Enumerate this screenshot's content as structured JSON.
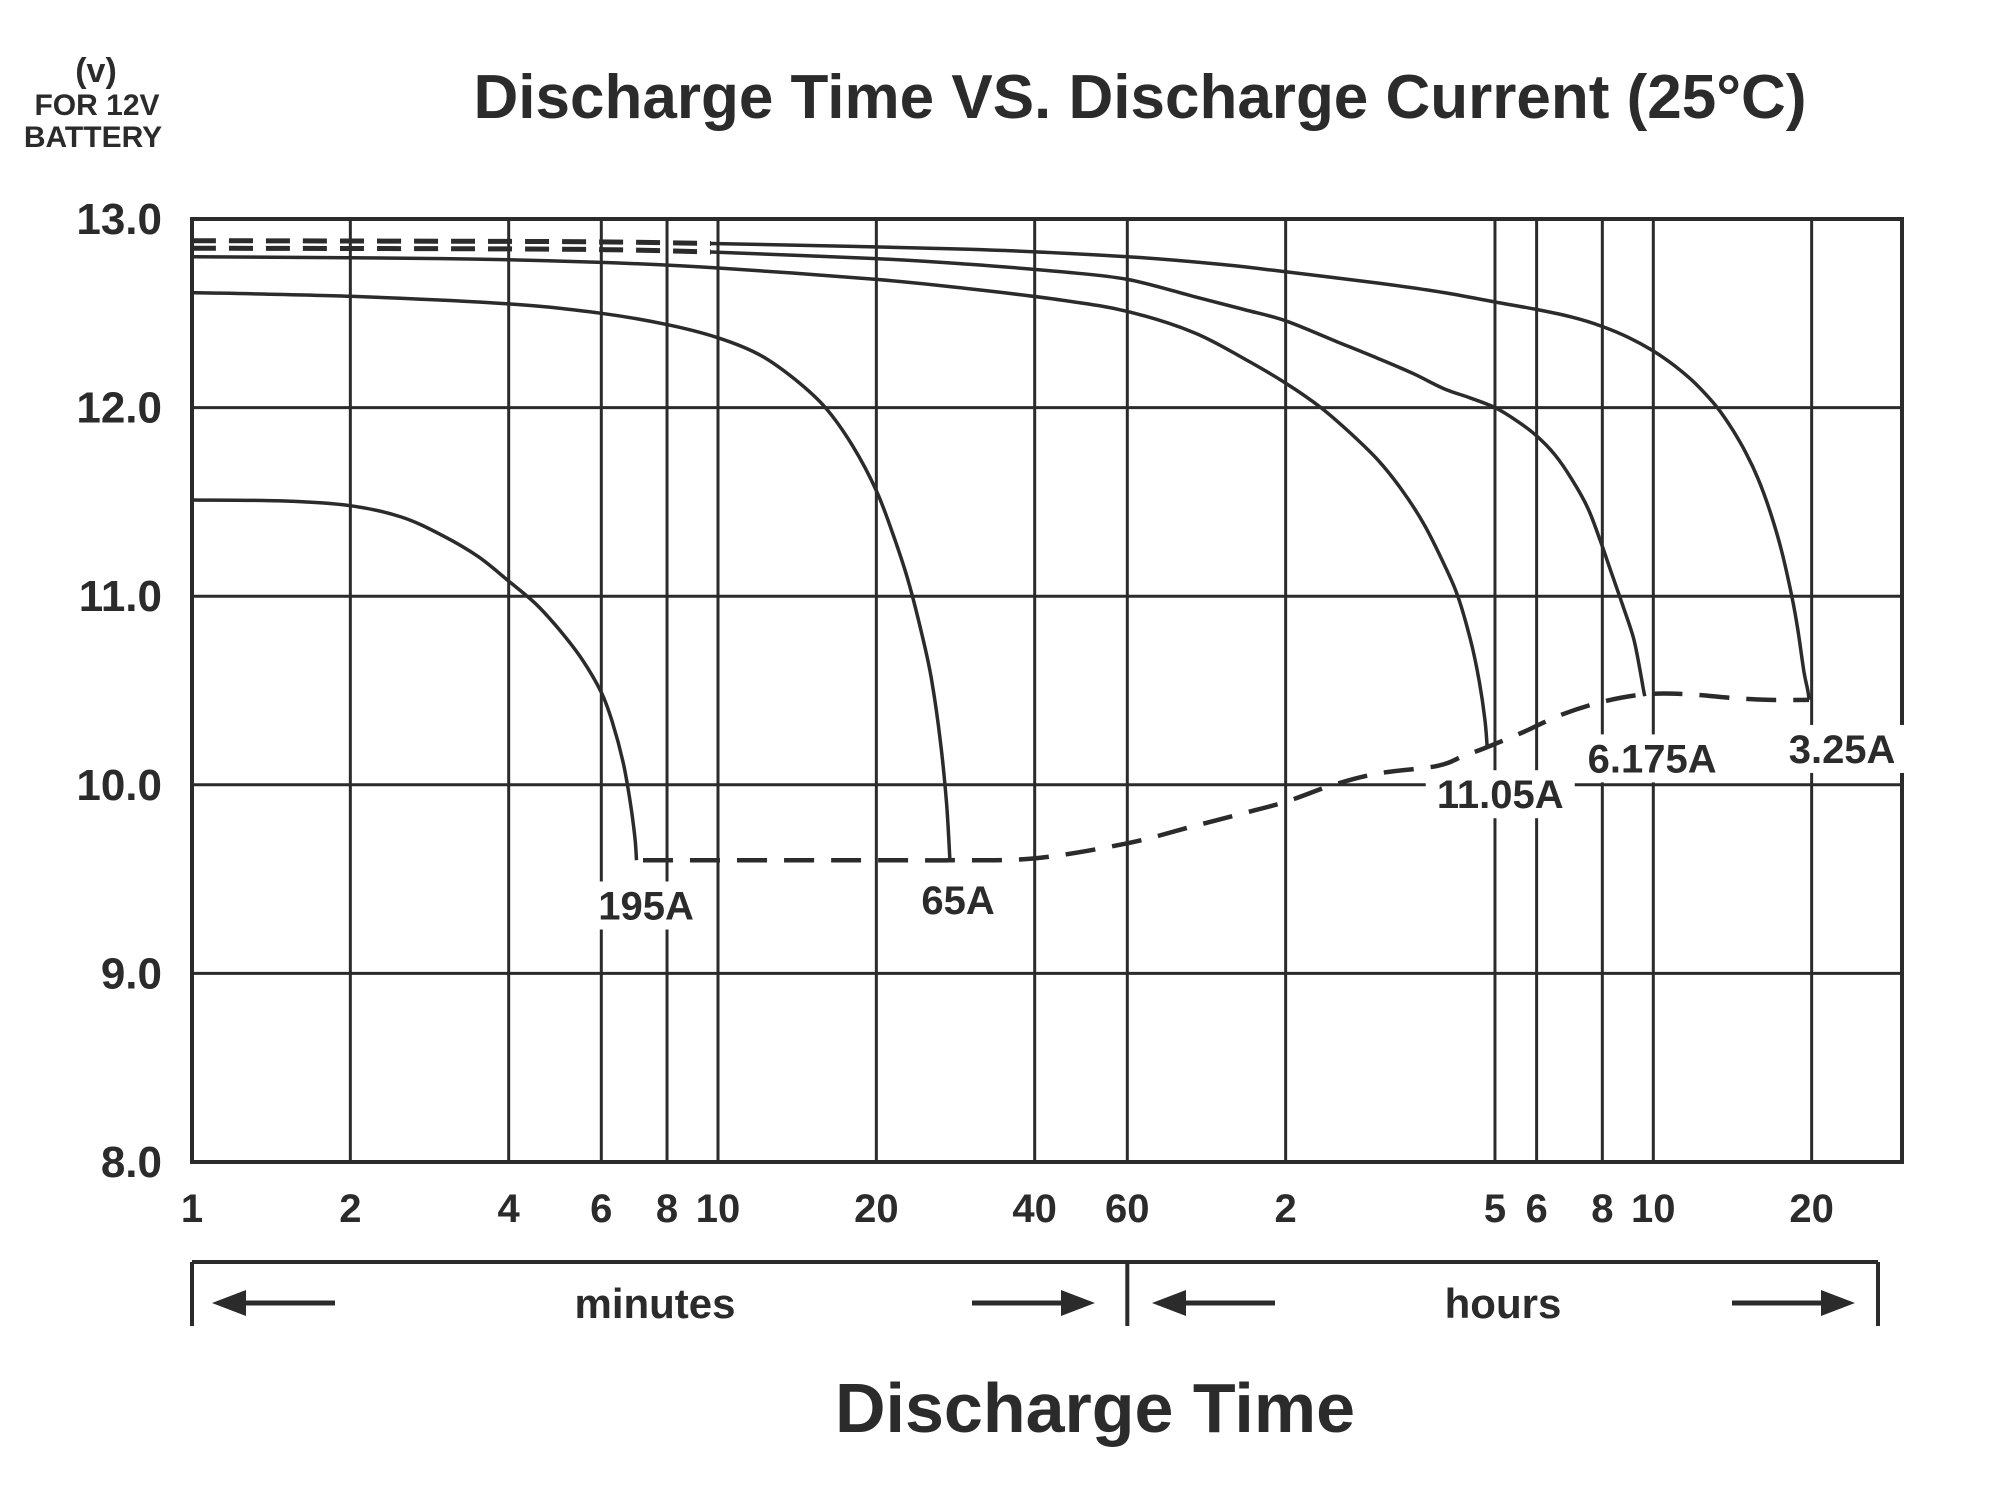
{
  "header": {
    "y_unit_line1": "(v)",
    "y_unit_line2": "FOR 12V",
    "y_unit_line3": "BATTERY",
    "title": "Discharge Time VS. Discharge Current (25°C)"
  },
  "axis": {
    "x_label": "Discharge Time",
    "minutes_label": "minutes",
    "hours_label": "hours",
    "y_tick_labels": [
      "13.0",
      "12.0",
      "11.0",
      "10.0",
      "9.0",
      "8.0"
    ],
    "x_tick_labels_minutes": [
      "1",
      "2",
      "4",
      "6",
      "8",
      "10",
      "20",
      "40",
      "60"
    ],
    "x_tick_labels_hours": [
      "2",
      "5",
      "6",
      "8",
      "10",
      "20"
    ]
  },
  "colors": {
    "ink": "#2b2b2b",
    "background": "#ffffff"
  },
  "chart_data": {
    "type": "line",
    "title": "Discharge Time VS. Discharge Current (25°C)",
    "xlabel": "Discharge Time",
    "ylabel": "(v) FOR 12V BATTERY",
    "x_scale": "log",
    "x_unit": "minutes",
    "xlim_minutes": [
      1,
      1780
    ],
    "ylim": [
      8.0,
      13.0
    ],
    "grid": true,
    "y_gridlines": [
      9.0,
      10.0,
      11.0,
      12.0
    ],
    "y_tick_values": [
      13.0,
      12.0,
      11.0,
      10.0,
      9.0,
      8.0
    ],
    "x_gridlines_minutes": [
      2,
      4,
      6,
      8,
      10,
      20,
      40,
      60,
      120,
      300,
      360,
      480,
      600,
      1200
    ],
    "x_ticks_minutes": [
      1,
      2,
      4,
      6,
      8,
      10,
      20,
      40,
      60
    ],
    "x_ticks_hours": [
      2,
      5,
      6,
      8,
      10,
      20
    ],
    "series": [
      {
        "name": "195A",
        "label": {
          "t": 7.3,
          "v": 9.36
        },
        "points": [
          [
            1,
            11.51
          ],
          [
            1.5,
            11.505
          ],
          [
            2,
            11.48
          ],
          [
            2.5,
            11.42
          ],
          [
            3,
            11.32
          ],
          [
            3.5,
            11.21
          ],
          [
            4,
            11.08
          ],
          [
            4.5,
            10.96
          ],
          [
            5,
            10.82
          ],
          [
            5.5,
            10.67
          ],
          [
            6,
            10.49
          ],
          [
            6.3,
            10.33
          ],
          [
            6.6,
            10.12
          ],
          [
            6.8,
            9.92
          ],
          [
            6.95,
            9.72
          ],
          [
            7,
            9.6
          ]
        ]
      },
      {
        "name": "65A",
        "label": {
          "t": 28.6,
          "v": 9.39
        },
        "points": [
          [
            1,
            12.61
          ],
          [
            2,
            12.59
          ],
          [
            4,
            12.55
          ],
          [
            6,
            12.5
          ],
          [
            8,
            12.44
          ],
          [
            10,
            12.37
          ],
          [
            12,
            12.28
          ],
          [
            14,
            12.15
          ],
          [
            16,
            12.0
          ],
          [
            18,
            11.8
          ],
          [
            20,
            11.56
          ],
          [
            21.5,
            11.33
          ],
          [
            23,
            11.08
          ],
          [
            24.5,
            10.78
          ],
          [
            25.5,
            10.55
          ],
          [
            26.5,
            10.22
          ],
          [
            27.2,
            9.9
          ],
          [
            27.6,
            9.6
          ]
        ]
      },
      {
        "name": "11.05A",
        "label": {
          "t": 307,
          "v": 9.95
        },
        "points": [
          [
            1,
            12.8
          ],
          [
            3,
            12.79
          ],
          [
            6,
            12.77
          ],
          [
            10,
            12.74
          ],
          [
            20,
            12.68
          ],
          [
            30,
            12.63
          ],
          [
            45,
            12.57
          ],
          [
            60,
            12.51
          ],
          [
            80,
            12.4
          ],
          [
            100,
            12.26
          ],
          [
            120,
            12.13
          ],
          [
            140,
            12.0
          ],
          [
            160,
            11.86
          ],
          [
            180,
            11.72
          ],
          [
            200,
            11.56
          ],
          [
            220,
            11.38
          ],
          [
            240,
            11.17
          ],
          [
            255,
            11.0
          ],
          [
            270,
            10.76
          ],
          [
            280,
            10.55
          ],
          [
            287,
            10.35
          ],
          [
            290,
            10.2
          ]
        ]
      },
      {
        "name": "6.175A",
        "label": {
          "t": 597,
          "v": 10.14
        },
        "dashed_lead": [
          [
            1,
            12.845
          ],
          [
            5,
            12.84
          ],
          [
            9.7,
            12.825
          ]
        ],
        "points": [
          [
            9.7,
            12.825
          ],
          [
            20,
            12.79
          ],
          [
            30,
            12.76
          ],
          [
            45,
            12.72
          ],
          [
            60,
            12.68
          ],
          [
            80,
            12.59
          ],
          [
            100,
            12.52
          ],
          [
            120,
            12.46
          ],
          [
            150,
            12.35
          ],
          [
            180,
            12.26
          ],
          [
            210,
            12.18
          ],
          [
            240,
            12.1
          ],
          [
            270,
            12.05
          ],
          [
            300,
            12.0
          ],
          [
            330,
            11.93
          ],
          [
            360,
            11.85
          ],
          [
            390,
            11.75
          ],
          [
            420,
            11.62
          ],
          [
            450,
            11.47
          ],
          [
            475,
            11.3
          ],
          [
            500,
            11.12
          ],
          [
            525,
            10.95
          ],
          [
            550,
            10.78
          ],
          [
            565,
            10.62
          ],
          [
            575,
            10.5
          ],
          [
            578,
            10.47
          ]
        ]
      },
      {
        "name": "3.25A",
        "label": {
          "t": 1371,
          "v": 10.19
        },
        "dashed_lead": [
          [
            1,
            12.885
          ],
          [
            5,
            12.88
          ],
          [
            9.7,
            12.87
          ]
        ],
        "points": [
          [
            9.7,
            12.87
          ],
          [
            30,
            12.84
          ],
          [
            60,
            12.8
          ],
          [
            90,
            12.76
          ],
          [
            120,
            12.72
          ],
          [
            180,
            12.66
          ],
          [
            240,
            12.61
          ],
          [
            300,
            12.56
          ],
          [
            360,
            12.52
          ],
          [
            420,
            12.48
          ],
          [
            480,
            12.43
          ],
          [
            540,
            12.37
          ],
          [
            600,
            12.3
          ],
          [
            660,
            12.22
          ],
          [
            720,
            12.13
          ],
          [
            794,
            12.0
          ],
          [
            850,
            11.88
          ],
          [
            900,
            11.76
          ],
          [
            950,
            11.62
          ],
          [
            1000,
            11.45
          ],
          [
            1050,
            11.25
          ],
          [
            1100,
            11.0
          ],
          [
            1130,
            10.82
          ],
          [
            1160,
            10.6
          ],
          [
            1180,
            10.5
          ],
          [
            1186,
            10.45
          ]
        ]
      },
      {
        "name": "cutoff-voltage-line",
        "style": "dashed",
        "points": [
          [
            7.2,
            9.6
          ],
          [
            20,
            9.6
          ],
          [
            27.6,
            9.6
          ],
          [
            40,
            9.61
          ],
          [
            60,
            9.69
          ],
          [
            80,
            9.78
          ],
          [
            100,
            9.85
          ],
          [
            120,
            9.91
          ],
          [
            148,
            10.0
          ],
          [
            180,
            10.06
          ],
          [
            233,
            10.1
          ],
          [
            260,
            10.15
          ],
          [
            290,
            10.2
          ],
          [
            340,
            10.28
          ],
          [
            400,
            10.37
          ],
          [
            480,
            10.44
          ],
          [
            580,
            10.48
          ],
          [
            700,
            10.48
          ],
          [
            850,
            10.46
          ],
          [
            1000,
            10.45
          ],
          [
            1186,
            10.45
          ]
        ]
      }
    ]
  }
}
